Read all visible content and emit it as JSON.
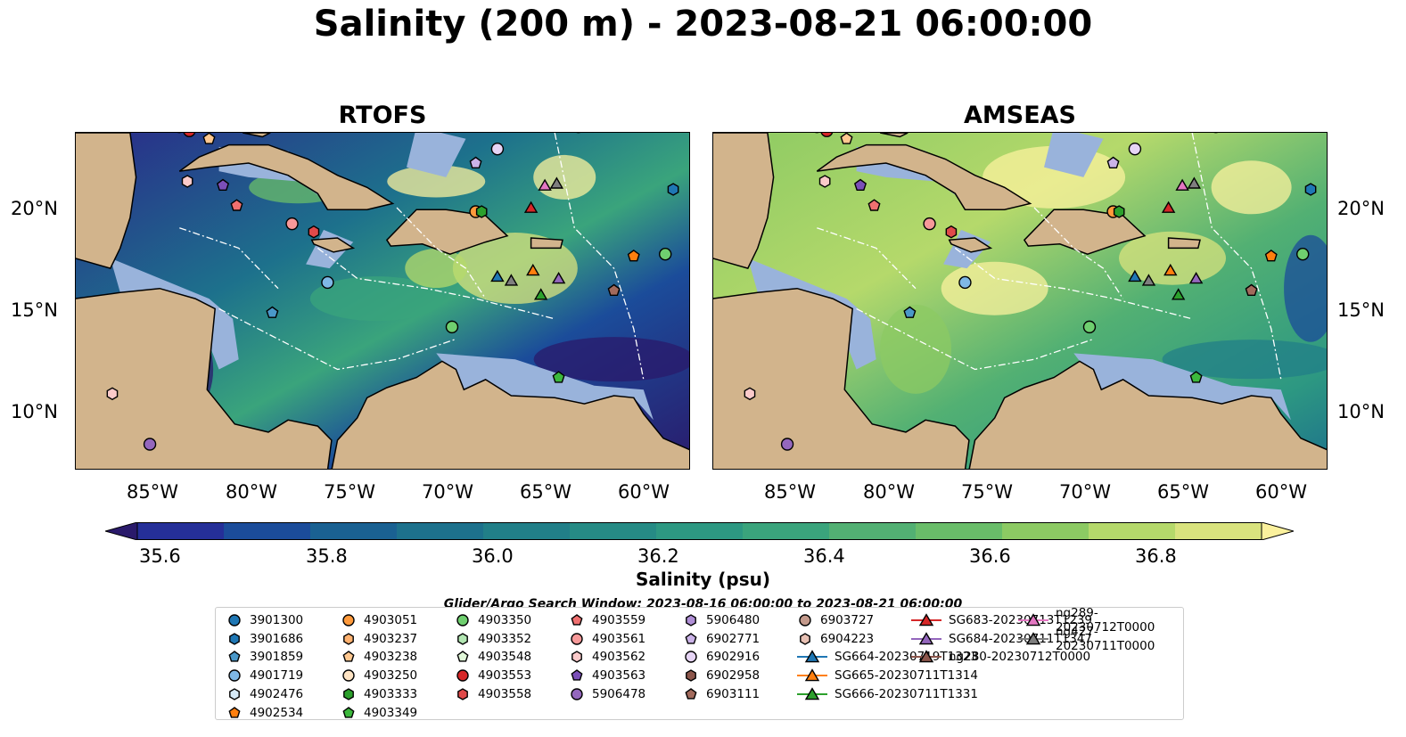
{
  "title": "Salinity (200 m) - 2023-08-21 06:00:00",
  "panels": [
    {
      "title": "RTOFS",
      "model": "rtofs"
    },
    {
      "title": "AMSEAS",
      "model": "amseas"
    }
  ],
  "lat_labels": [
    "20°N",
    "15°N",
    "10°N"
  ],
  "lon_labels": [
    "85°W",
    "80°W",
    "75°W",
    "70°W",
    "65°W",
    "60°W"
  ],
  "colorbar": {
    "label": "Salinity (psu)",
    "min": 35.5,
    "max": 36.9,
    "step": 0.1,
    "ticks": [
      "35.6",
      "35.8",
      "36.0",
      "36.2",
      "36.4",
      "36.6",
      "36.8"
    ],
    "colors": [
      "#2a1a6b",
      "#252f98",
      "#1b4c9a",
      "#1a6192",
      "#1d718c",
      "#217f88",
      "#268b85",
      "#2d9882",
      "#3aa47c",
      "#52b073",
      "#69bd69",
      "#8cca63",
      "#b5d96b",
      "#d9e37e",
      "#fbf19d"
    ],
    "extend": "both"
  },
  "search_window": "Glider/Argo Search Window: 2023-08-16 06:00:00 to 2023-08-21 06:00:00",
  "colors": {
    "land": "#d2b48c",
    "shallow": "#99b3db",
    "deep": "#2a1a6b",
    "high": "#fbf19d"
  },
  "legend": [
    {
      "label": "3901300",
      "marker": "circle",
      "color": "#1f77b4"
    },
    {
      "label": "3901686",
      "marker": "hexagon",
      "color": "#1f77b4"
    },
    {
      "label": "3901859",
      "marker": "pentagon",
      "color": "#4a98c9"
    },
    {
      "label": "4901719",
      "marker": "circle",
      "color": "#7fb8e6"
    },
    {
      "label": "4902476",
      "marker": "hexagon",
      "color": "#d6eaf8"
    },
    {
      "label": "4902534",
      "marker": "pentagon",
      "color": "#ff7f0e"
    },
    {
      "label": "4903051",
      "marker": "circle",
      "color": "#ff9a3c"
    },
    {
      "label": "4903237",
      "marker": "hexagon",
      "color": "#ffb270"
    },
    {
      "label": "4903238",
      "marker": "pentagon",
      "color": "#ffc890"
    },
    {
      "label": "4903250",
      "marker": "circle",
      "color": "#ffe4c4"
    },
    {
      "label": "4903333",
      "marker": "hexagon",
      "color": "#2ca02c"
    },
    {
      "label": "4903349",
      "marker": "pentagon",
      "color": "#3cb83c"
    },
    {
      "label": "4903350",
      "marker": "circle",
      "color": "#6fcf6f"
    },
    {
      "label": "4903352",
      "marker": "hexagon",
      "color": "#b2e6b2"
    },
    {
      "label": "4903548",
      "marker": "pentagon",
      "color": "#e0f7d8"
    },
    {
      "label": "4903553",
      "marker": "circle",
      "color": "#d62728"
    },
    {
      "label": "4903558",
      "marker": "hexagon",
      "color": "#e04a4a"
    },
    {
      "label": "4903559",
      "marker": "pentagon",
      "color": "#f07070"
    },
    {
      "label": "4903561",
      "marker": "circle",
      "color": "#f79999"
    },
    {
      "label": "4903562",
      "marker": "hexagon",
      "color": "#fbcaca"
    },
    {
      "label": "4903563",
      "marker": "pentagon",
      "color": "#7b4fb8"
    },
    {
      "label": "5906478",
      "marker": "circle",
      "color": "#9467bd"
    },
    {
      "label": "5906480",
      "marker": "hexagon",
      "color": "#b08fd6"
    },
    {
      "label": "6902771",
      "marker": "pentagon",
      "color": "#cbb3e8"
    },
    {
      "label": "6902916",
      "marker": "circle",
      "color": "#e6d4f5"
    },
    {
      "label": "6902958",
      "marker": "hexagon",
      "color": "#8c564b"
    },
    {
      "label": "6903111",
      "marker": "pentagon",
      "color": "#a26a5c"
    },
    {
      "label": "6903727",
      "marker": "circle",
      "color": "#c49a8c"
    },
    {
      "label": "6904223",
      "marker": "hexagon",
      "color": "#e8c1b4"
    },
    {
      "label": "SG664-20230719T1323",
      "marker": "triangle-line",
      "color": "#1f77b4"
    },
    {
      "label": "SG665-20230711T1314",
      "marker": "triangle-line",
      "color": "#ff7f0e"
    },
    {
      "label": "SG666-20230711T1331",
      "marker": "triangle-line",
      "color": "#2ca02c"
    },
    {
      "label": "SG683-20230713T1239",
      "marker": "triangle-line",
      "color": "#d62728"
    },
    {
      "label": "SG684-20230711T1347",
      "marker": "triangle-line",
      "color": "#9467bd"
    },
    {
      "label": "ng280-20230712T0000",
      "marker": "triangle-line",
      "color": "#8c564b"
    },
    {
      "label": "ng289-20230712T0000",
      "marker": "triangle-line",
      "color": "#e377c2"
    },
    {
      "label": "ng427-20230711T0000",
      "marker": "triangle-line",
      "color": "#7f7f7f"
    }
  ],
  "markers": [
    {
      "lon": -85.0,
      "lat": 24.0,
      "shape": "circle",
      "color": "#ffe4c4"
    },
    {
      "lon": -84.5,
      "lat": 23.8,
      "shape": "circle",
      "color": "#d62728"
    },
    {
      "lon": -83.5,
      "lat": 23.4,
      "shape": "pentagon",
      "color": "#ffc890"
    },
    {
      "lon": -84.6,
      "lat": 21.3,
      "shape": "hexagon",
      "color": "#fbcaca"
    },
    {
      "lon": -82.8,
      "lat": 21.1,
      "shape": "pentagon",
      "color": "#7b4fb8"
    },
    {
      "lon": -82.1,
      "lat": 20.1,
      "shape": "pentagon",
      "color": "#f07070"
    },
    {
      "lon": -79.3,
      "lat": 19.2,
      "shape": "circle",
      "color": "#f79999"
    },
    {
      "lon": -78.2,
      "lat": 18.8,
      "shape": "hexagon",
      "color": "#e04a4a"
    },
    {
      "lon": -77.5,
      "lat": 16.3,
      "shape": "circle",
      "color": "#7fb8e6"
    },
    {
      "lon": -80.3,
      "lat": 14.8,
      "shape": "pentagon",
      "color": "#4a98c9"
    },
    {
      "lon": -71.2,
      "lat": 14.1,
      "shape": "circle",
      "color": "#6fcf6f"
    },
    {
      "lon": -70.0,
      "lat": 22.2,
      "shape": "pentagon",
      "color": "#cbb3e8"
    },
    {
      "lon": -68.9,
      "lat": 22.9,
      "shape": "circle",
      "color": "#e6d4f5"
    },
    {
      "lon": -70.0,
      "lat": 19.8,
      "shape": "circle",
      "color": "#ff9a3c"
    },
    {
      "lon": -69.7,
      "lat": 19.8,
      "shape": "hexagon",
      "color": "#2ca02c"
    },
    {
      "lon": -67.2,
      "lat": 20.0,
      "shape": "triangle",
      "color": "#d62728"
    },
    {
      "lon": -66.5,
      "lat": 21.1,
      "shape": "triangle",
      "color": "#e377c2"
    },
    {
      "lon": -65.9,
      "lat": 21.2,
      "shape": "triangle",
      "color": "#7f7f7f"
    },
    {
      "lon": -67.1,
      "lat": 16.9,
      "shape": "triangle",
      "color": "#ff7f0e"
    },
    {
      "lon": -68.9,
      "lat": 16.6,
      "shape": "triangle",
      "color": "#1f77b4"
    },
    {
      "lon": -68.2,
      "lat": 16.4,
      "shape": "triangle",
      "color": "#7f7f7f"
    },
    {
      "lon": -66.7,
      "lat": 15.7,
      "shape": "triangle",
      "color": "#2ca02c"
    },
    {
      "lon": -65.8,
      "lat": 16.5,
      "shape": "triangle",
      "color": "#9467bd"
    },
    {
      "lon": -62.0,
      "lat": 17.6,
      "shape": "pentagon",
      "color": "#ff7f0e"
    },
    {
      "lon": -60.0,
      "lat": 20.9,
      "shape": "hexagon",
      "color": "#1f77b4"
    },
    {
      "lon": -60.4,
      "lat": 17.7,
      "shape": "circle",
      "color": "#6fcf6f"
    },
    {
      "lon": -63.0,
      "lat": 15.9,
      "shape": "pentagon",
      "color": "#a26a5c"
    },
    {
      "lon": -58.1,
      "lat": 13.9,
      "shape": "hexagon",
      "color": "#8c564b"
    },
    {
      "lon": -65.8,
      "lat": 11.6,
      "shape": "pentagon",
      "color": "#3cb83c"
    },
    {
      "lon": -88.4,
      "lat": 10.8,
      "shape": "hexagon",
      "color": "#fbcaca"
    },
    {
      "lon": -86.5,
      "lat": 8.3,
      "shape": "circle",
      "color": "#9467bd"
    },
    {
      "lon": -64.8,
      "lat": 24.0,
      "shape": "circle",
      "color": "#f79999"
    }
  ]
}
